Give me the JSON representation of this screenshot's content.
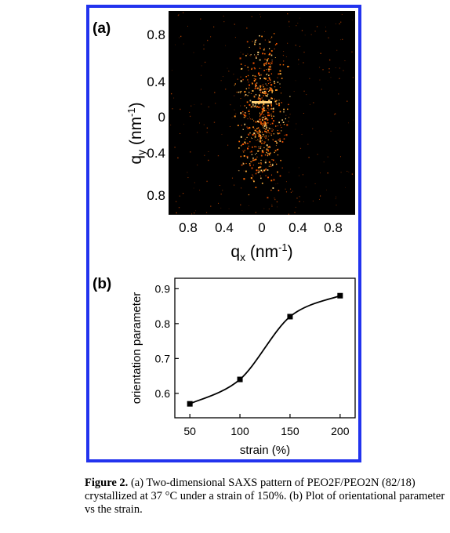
{
  "panel_a": {
    "label": "(a)",
    "y_ticks": [
      "0.8",
      "0.4",
      "0",
      "0.4",
      "0.8"
    ],
    "x_ticks": [
      "0.8",
      "0.4",
      "0",
      "0.4",
      "0.8"
    ],
    "y_axis_label": {
      "base": "q",
      "sub": "y",
      "unit_open": " (nm",
      "unit_sup": "-1",
      "unit_close": ")"
    },
    "x_axis_label": {
      "base": "q",
      "sub": "x",
      "unit_open": " (nm",
      "unit_sup": "-1",
      "unit_close": ")"
    }
  },
  "chart_data": {
    "type": "line",
    "panel_label": "(b)",
    "title": "",
    "xlabel": "strain (%)",
    "ylabel": "orientation parameter",
    "x_ticks": [
      "50",
      "100",
      "150",
      "200"
    ],
    "y_ticks": [
      "0.6",
      "0.7",
      "0.8",
      "0.9"
    ],
    "xlim": [
      35,
      215
    ],
    "ylim": [
      0.53,
      0.93
    ],
    "series": [
      {
        "x": [
          50,
          100,
          150,
          200
        ],
        "y": [
          0.57,
          0.64,
          0.82,
          0.88
        ],
        "marker": "square",
        "color": "#000000"
      }
    ],
    "grid": false,
    "legend": "none"
  },
  "caption": {
    "bold": "Figure 2.",
    "text": "(a) Two-dimensional SAXS pattern of PEO2F/PEO2N (82/18) crystallized at 37 °C under a strain of 150%. (b) Plot of orientational parameter vs the strain."
  }
}
